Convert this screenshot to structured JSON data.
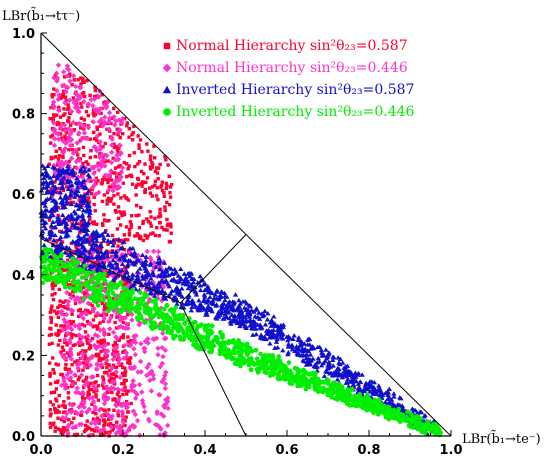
{
  "chart_data": {
    "type": "scatter",
    "title": "",
    "xlabel": "LBr(b̃₁→te⁻)",
    "ylabel": "LBr(b̃₁→tτ⁻)",
    "xlim": [
      0,
      1
    ],
    "ylim": [
      0,
      1
    ],
    "x_ticks": [
      "0.0",
      "0.2",
      "0.4",
      "0.6",
      "0.8",
      "1.0"
    ],
    "y_ticks": [
      "0.0",
      "0.2",
      "0.4",
      "0.6",
      "0.8",
      "1.0"
    ],
    "grid": false,
    "legend_position": "top-right",
    "series": [
      {
        "name": "Normal Hierarchy sin²θ₂₃=0.587",
        "marker": "square",
        "color": "#ff0033",
        "regions": [
          {
            "x": [
              0.02,
              0.22
            ],
            "y": [
              0.0,
              0.48
            ],
            "n": 700
          },
          {
            "x": [
              0.02,
              0.32
            ],
            "y": [
              0.48,
              0.9
            ],
            "n": 650
          }
        ]
      },
      {
        "name": "Normal Hierarchy sin²θ₂₃=0.446",
        "marker": "diamond",
        "color": "#ff33cc",
        "regions": [
          {
            "x": [
              0.05,
              0.31
            ],
            "y": [
              0.0,
              0.46
            ],
            "n": 520
          },
          {
            "x": [
              0.03,
              0.2
            ],
            "y": [
              0.6,
              0.93
            ],
            "n": 260
          }
        ]
      },
      {
        "name": "Inverted Hierarchy sin²θ₂₃=0.587",
        "marker": "triangle",
        "color": "#1010cc",
        "regions": [
          {
            "x": [
              0.0,
              0.12
            ],
            "y": [
              0.44,
              0.67
            ],
            "n": 320
          },
          {
            "band": [
              [
                0.1,
                0.47
              ],
              [
                0.5,
                0.3
              ],
              [
                0.97,
                0.01
              ]
            ],
            "width": 0.11,
            "n": 1000
          }
        ]
      },
      {
        "name": "Inverted Hierarchy sin²θ₂₃=0.446",
        "marker": "circle",
        "color": "#00ee00",
        "regions": [
          {
            "band": [
              [
                0.0,
                0.43
              ],
              [
                0.5,
                0.2
              ],
              [
                0.97,
                0.01
              ]
            ],
            "width": 0.085,
            "n": 1100
          }
        ]
      }
    ],
    "lines": [
      {
        "x": [
          0,
          1
        ],
        "y": [
          1,
          0
        ]
      },
      {
        "x": [
          0.34,
          0.5
        ],
        "y": [
          0.33,
          0.0
        ]
      },
      {
        "x": [
          0.34,
          0.5
        ],
        "y": [
          0.33,
          0.5
        ]
      },
      {
        "x": [
          0,
          0.34
        ],
        "y": [
          0.49,
          0.33
        ]
      }
    ]
  }
}
